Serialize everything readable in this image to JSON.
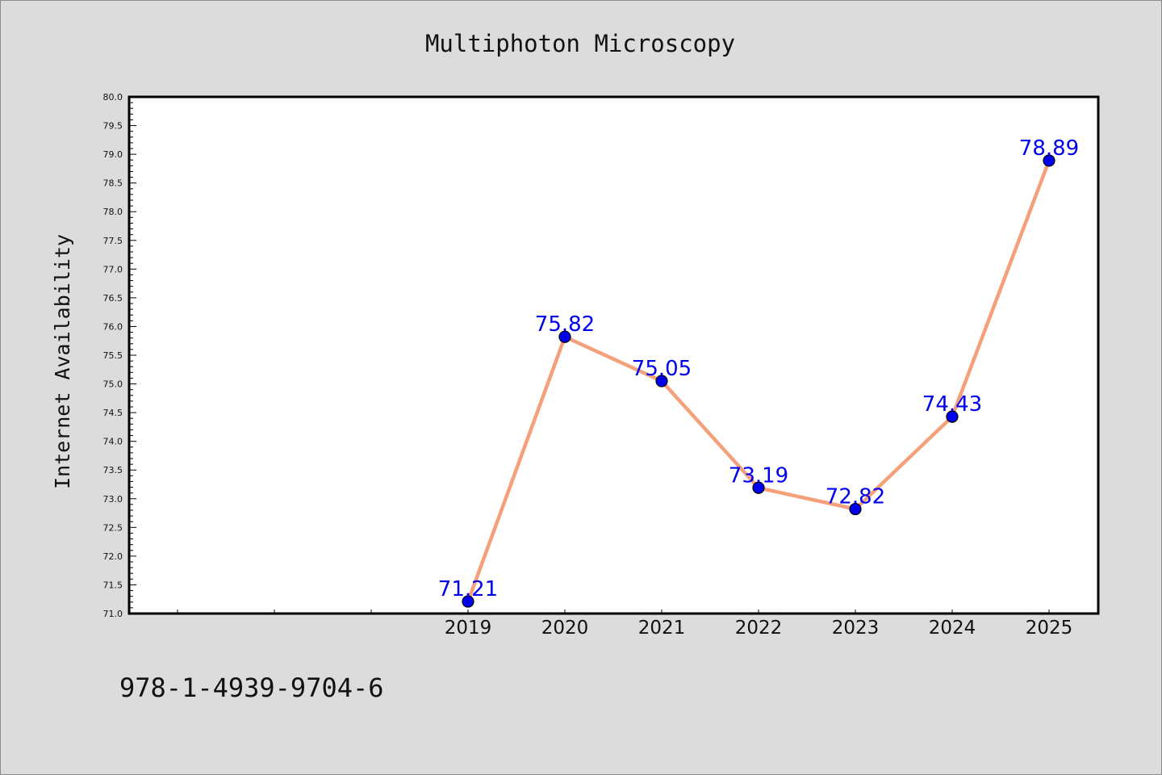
{
  "chart_data": {
    "type": "line",
    "title": "Multiphoton Microscopy",
    "xlabel": "",
    "ylabel": "Internet Availability",
    "categories": [
      "2019",
      "2020",
      "2021",
      "2022",
      "2023",
      "2024",
      "2025"
    ],
    "values": [
      71.21,
      75.82,
      75.05,
      73.19,
      72.82,
      74.43,
      78.89
    ],
    "data_labels": [
      "71.21",
      "75.82",
      "75.05",
      "73.19",
      "72.82",
      "74.43",
      "78.89"
    ],
    "ylim": [
      71.0,
      80.0
    ],
    "y_ticks": [
      "71.0",
      "71.5",
      "72.0",
      "72.5",
      "73.0",
      "73.5",
      "74.0",
      "74.5",
      "75.0",
      "75.5",
      "76.0",
      "76.5",
      "77.0",
      "77.5",
      "78.0",
      "78.5",
      "79.0",
      "79.5",
      "80.0"
    ],
    "grid": false,
    "legend": "none",
    "colors": {
      "line": "#f4a07a",
      "marker": "#0000ee",
      "label": "#0000ee",
      "background": "#dcdcdc",
      "plot_background": "#ffffff"
    }
  },
  "footer": {
    "code": "978-1-4939-9704-6"
  }
}
